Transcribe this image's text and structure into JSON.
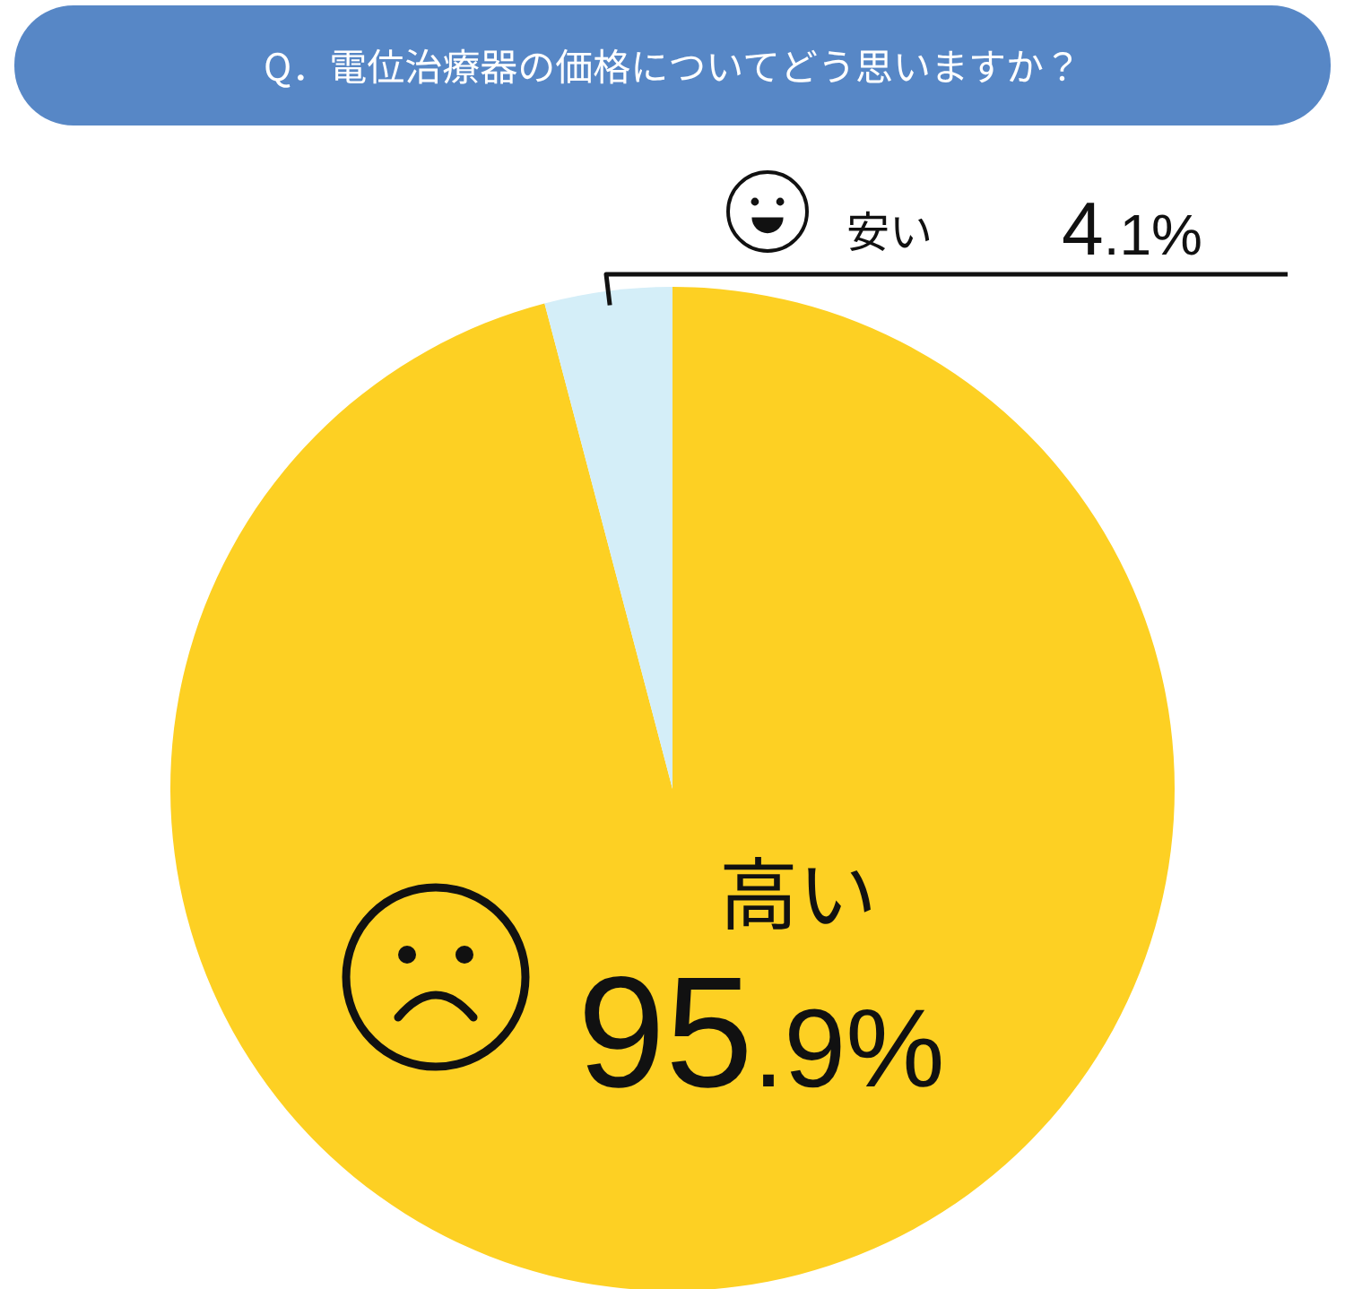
{
  "chart_data": {
    "type": "pie",
    "title": "Q．電位治療器の価格についてどう思いますか？",
    "categories": [
      "高い",
      "安い"
    ],
    "values": [
      95.9,
      4.1
    ],
    "colors": [
      "#fdd023",
      "#d4eef8"
    ],
    "value_labels": [
      "95.9%",
      "4.1%"
    ]
  }
}
